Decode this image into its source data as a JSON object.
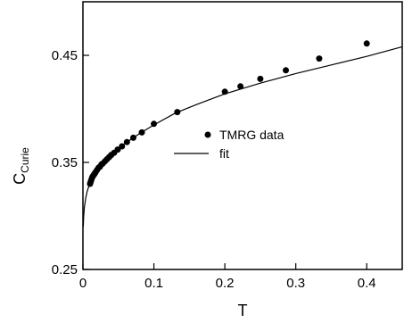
{
  "chart_data": {
    "type": "scatter",
    "title": "",
    "xlabel": "T",
    "ylabel_main": "C",
    "ylabel_sub": "Curie",
    "xlim": [
      0,
      0.45
    ],
    "ylim": [
      0.25,
      0.5
    ],
    "xticks": [
      0,
      0.1,
      0.2,
      0.3,
      0.4
    ],
    "xtick_labels": [
      "0",
      "0.1",
      "0.2",
      "0.3",
      "0.4"
    ],
    "yticks": [
      0.25,
      0.35,
      0.45
    ],
    "ytick_labels": [
      "0.25",
      "0.35",
      "0.45"
    ],
    "grid": false,
    "legend_position": "center-right",
    "legend": [
      {
        "label": "TMRG data",
        "marker": "dot"
      },
      {
        "label": "fit",
        "marker": "line"
      }
    ],
    "series": [
      {
        "name": "TMRG data",
        "type": "scatter",
        "color": "#000000",
        "points": [
          {
            "x": 0.01,
            "y": 0.33
          },
          {
            "x": 0.011,
            "y": 0.332
          },
          {
            "x": 0.012,
            "y": 0.334
          },
          {
            "x": 0.013,
            "y": 0.336
          },
          {
            "x": 0.014,
            "y": 0.337
          },
          {
            "x": 0.015,
            "y": 0.338
          },
          {
            "x": 0.016,
            "y": 0.339
          },
          {
            "x": 0.017,
            "y": 0.34
          },
          {
            "x": 0.018,
            "y": 0.341
          },
          {
            "x": 0.02,
            "y": 0.343
          },
          {
            "x": 0.022,
            "y": 0.345
          },
          {
            "x": 0.024,
            "y": 0.346
          },
          {
            "x": 0.026,
            "y": 0.348
          },
          {
            "x": 0.028,
            "y": 0.349
          },
          {
            "x": 0.031,
            "y": 0.351
          },
          {
            "x": 0.034,
            "y": 0.353
          },
          {
            "x": 0.037,
            "y": 0.355
          },
          {
            "x": 0.04,
            "y": 0.357
          },
          {
            "x": 0.044,
            "y": 0.359
          },
          {
            "x": 0.049,
            "y": 0.362
          },
          {
            "x": 0.055,
            "y": 0.365
          },
          {
            "x": 0.062,
            "y": 0.369
          },
          {
            "x": 0.071,
            "y": 0.373
          },
          {
            "x": 0.083,
            "y": 0.378
          },
          {
            "x": 0.1,
            "y": 0.386
          },
          {
            "x": 0.133,
            "y": 0.397
          },
          {
            "x": 0.2,
            "y": 0.416
          },
          {
            "x": 0.222,
            "y": 0.421
          },
          {
            "x": 0.25,
            "y": 0.428
          },
          {
            "x": 0.286,
            "y": 0.436
          },
          {
            "x": 0.333,
            "y": 0.447
          },
          {
            "x": 0.4,
            "y": 0.461
          }
        ]
      },
      {
        "name": "fit",
        "type": "line",
        "color": "#000000",
        "points": [
          {
            "x": 0.0005,
            "y": 0.29
          },
          {
            "x": 0.001,
            "y": 0.299
          },
          {
            "x": 0.002,
            "y": 0.308
          },
          {
            "x": 0.004,
            "y": 0.317
          },
          {
            "x": 0.006,
            "y": 0.323
          },
          {
            "x": 0.008,
            "y": 0.327
          },
          {
            "x": 0.01,
            "y": 0.33
          },
          {
            "x": 0.015,
            "y": 0.337
          },
          {
            "x": 0.02,
            "y": 0.343
          },
          {
            "x": 0.03,
            "y": 0.351
          },
          {
            "x": 0.04,
            "y": 0.357
          },
          {
            "x": 0.05,
            "y": 0.363
          },
          {
            "x": 0.06,
            "y": 0.368
          },
          {
            "x": 0.08,
            "y": 0.377
          },
          {
            "x": 0.1,
            "y": 0.385
          },
          {
            "x": 0.13,
            "y": 0.396
          },
          {
            "x": 0.16,
            "y": 0.404
          },
          {
            "x": 0.2,
            "y": 0.414
          },
          {
            "x": 0.25,
            "y": 0.424
          },
          {
            "x": 0.3,
            "y": 0.433
          },
          {
            "x": 0.35,
            "y": 0.441
          },
          {
            "x": 0.4,
            "y": 0.449
          },
          {
            "x": 0.45,
            "y": 0.458
          }
        ]
      }
    ]
  }
}
